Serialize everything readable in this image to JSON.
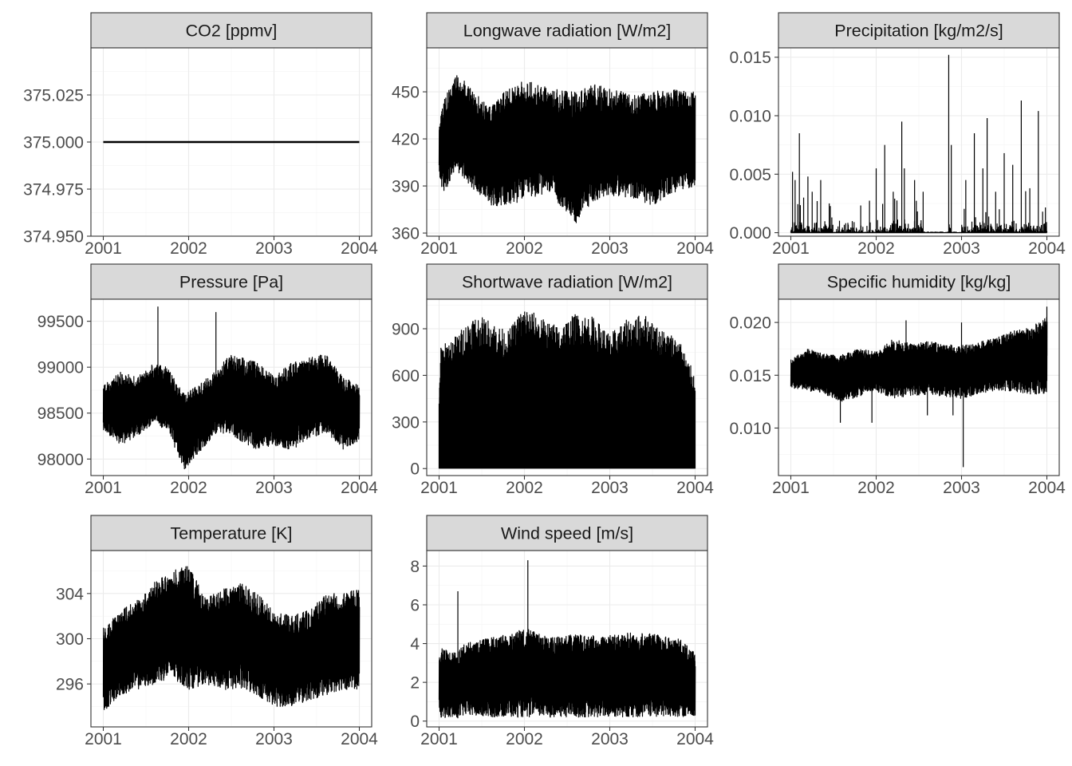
{
  "chart_data": [
    {
      "type": "line",
      "title": "CO2 [ppmv]",
      "x_ticks": [
        "2001",
        "2002",
        "2003",
        "2004"
      ],
      "x_range": [
        2001,
        2004
      ],
      "y_ticks": [
        "374.950",
        "374.975",
        "375.000",
        "375.025"
      ],
      "y_tick_values": [
        374.95,
        374.975,
        375.0,
        375.025
      ],
      "ylim": [
        374.95,
        375.05
      ],
      "pattern": "constant",
      "values": [
        375.0,
        375.0
      ],
      "x": [
        2001,
        2004
      ]
    },
    {
      "type": "line",
      "title": "Longwave radiation [W/m2]",
      "x_ticks": [
        "2001",
        "2002",
        "2003",
        "2004"
      ],
      "x_range": [
        2001,
        2004
      ],
      "y_ticks": [
        "360",
        "390",
        "420",
        "450"
      ],
      "y_tick_values": [
        360,
        390,
        420,
        450
      ],
      "ylim": [
        358,
        478
      ],
      "pattern": "band",
      "envelope": {
        "x": [
          2001.0,
          2001.05,
          2001.2,
          2001.4,
          2001.6,
          2001.8,
          2002.0,
          2002.3,
          2002.6,
          2002.8,
          2003.0,
          2003.3,
          2003.5,
          2003.7,
          2004.0
        ],
        "min": [
          395,
          385,
          400,
          388,
          378,
          376,
          382,
          385,
          366,
          380,
          384,
          382,
          377,
          385,
          390
        ],
        "max": [
          430,
          445,
          463,
          450,
          440,
          452,
          458,
          452,
          450,
          455,
          452,
          448,
          450,
          452,
          450
        ]
      }
    },
    {
      "type": "line",
      "title": "Precipitation [kg/m2/s]",
      "x_ticks": [
        "2001",
        "2002",
        "2003",
        "2004"
      ],
      "x_range": [
        2001,
        2004
      ],
      "y_ticks": [
        "0.000",
        "0.005",
        "0.010",
        "0.015"
      ],
      "y_tick_values": [
        0.0,
        0.005,
        0.01,
        0.015
      ],
      "ylim": [
        -0.0003,
        0.0158
      ],
      "pattern": "spikes",
      "spikes": {
        "x": [
          2001.02,
          2001.05,
          2001.1,
          2001.15,
          2001.2,
          2001.25,
          2001.35,
          2001.45,
          2002.0,
          2002.1,
          2002.2,
          2002.3,
          2002.33,
          2002.45,
          2002.55,
          2002.85,
          2002.88,
          2003.05,
          2003.15,
          2003.25,
          2003.3,
          2003.4,
          2003.5,
          2003.6,
          2003.7,
          2003.8,
          2003.9,
          2003.95
        ],
        "values": [
          0.0052,
          0.0045,
          0.0085,
          0.003,
          0.0048,
          0.0035,
          0.0045,
          0.0025,
          0.0055,
          0.0075,
          0.0035,
          0.0095,
          0.0055,
          0.0045,
          0.0035,
          0.0152,
          0.0075,
          0.0045,
          0.0085,
          0.0055,
          0.0098,
          0.0035,
          0.0068,
          0.0058,
          0.0113,
          0.0038,
          0.0104,
          0.0018
        ]
      }
    },
    {
      "type": "line",
      "title": "Pressure [Pa]",
      "x_ticks": [
        "2001",
        "2002",
        "2003",
        "2004"
      ],
      "x_range": [
        2001,
        2004
      ],
      "y_ticks": [
        "98000",
        "98500",
        "99000",
        "99500"
      ],
      "y_tick_values": [
        98000,
        98500,
        99000,
        99500
      ],
      "ylim": [
        97820,
        99740
      ],
      "pattern": "band",
      "envelope": {
        "x": [
          2001.0,
          2001.2,
          2001.4,
          2001.6,
          2001.75,
          2001.95,
          2002.1,
          2002.35,
          2002.5,
          2002.8,
          2003.0,
          2003.2,
          2003.4,
          2003.6,
          2003.8,
          2004.0
        ],
        "min": [
          98300,
          98150,
          98250,
          98400,
          98300,
          97880,
          98050,
          98300,
          98250,
          98100,
          98150,
          98100,
          98200,
          98300,
          98100,
          98200
        ],
        "max": [
          98800,
          98950,
          98900,
          99050,
          99000,
          98700,
          98800,
          99000,
          99150,
          99050,
          98900,
          99050,
          99100,
          99150,
          98900,
          98800
        ]
      },
      "spikes": {
        "x": [
          2001.64,
          2002.32
        ],
        "values": [
          99660,
          99600
        ]
      }
    },
    {
      "type": "line",
      "title": "Shortwave radiation [W/m2]",
      "x_ticks": [
        "2001",
        "2002",
        "2003",
        "2004"
      ],
      "x_range": [
        2001,
        2004
      ],
      "y_ticks": [
        "0",
        "300",
        "600",
        "900"
      ],
      "y_tick_values": [
        0,
        300,
        600,
        900
      ],
      "ylim": [
        -45,
        1090
      ],
      "pattern": "filled",
      "envelope": {
        "x": [
          2001.0,
          2001.02,
          2001.2,
          2001.4,
          2001.6,
          2001.8,
          2002.0,
          2002.2,
          2002.4,
          2002.6,
          2002.8,
          2003.0,
          2003.2,
          2003.4,
          2003.6,
          2003.8,
          2004.0
        ],
        "min": [
          0,
          0,
          0,
          0,
          0,
          0,
          0,
          0,
          0,
          0,
          0,
          0,
          0,
          0,
          0,
          0,
          0
        ],
        "max": [
          500,
          790,
          860,
          990,
          960,
          880,
          1050,
          970,
          920,
          1000,
          980,
          870,
          960,
          1000,
          900,
          850,
          600
        ]
      }
    },
    {
      "type": "line",
      "title": "Specific humidity [kg/kg]",
      "x_ticks": [
        "2001",
        "2002",
        "2003",
        "2004"
      ],
      "x_range": [
        2001,
        2004
      ],
      "y_ticks": [
        "0.010",
        "0.015",
        "0.020"
      ],
      "y_tick_values": [
        0.01,
        0.015,
        0.02
      ],
      "ylim": [
        0.0055,
        0.0222
      ],
      "pattern": "band",
      "envelope": {
        "x": [
          2001.0,
          2001.2,
          2001.4,
          2001.6,
          2001.8,
          2002.0,
          2002.2,
          2002.4,
          2002.6,
          2002.8,
          2003.0,
          2003.2,
          2003.4,
          2003.6,
          2003.8,
          2004.0
        ],
        "min": [
          0.0138,
          0.0135,
          0.0132,
          0.0125,
          0.013,
          0.0135,
          0.0128,
          0.013,
          0.0132,
          0.013,
          0.0128,
          0.0132,
          0.0135,
          0.0135,
          0.0132,
          0.0132
        ],
        "max": [
          0.0165,
          0.0175,
          0.017,
          0.017,
          0.0175,
          0.0172,
          0.0185,
          0.018,
          0.0182,
          0.018,
          0.0178,
          0.0182,
          0.0185,
          0.0192,
          0.0195,
          0.0205
        ]
      },
      "spikes_down": {
        "x": [
          2001.58,
          2001.95,
          2002.6,
          2002.9,
          2003.02
        ],
        "values": [
          0.0105,
          0.0105,
          0.0112,
          0.0112,
          0.0063
        ]
      },
      "spikes": {
        "x": [
          2002.35,
          2003.0,
          2004.0
        ],
        "values": [
          0.0202,
          0.02,
          0.0215
        ]
      }
    },
    {
      "type": "line",
      "title": "Temperature [K]",
      "x_ticks": [
        "2001",
        "2002",
        "2003",
        "2004"
      ],
      "x_range": [
        2001,
        2004
      ],
      "y_ticks": [
        "296",
        "300",
        "304"
      ],
      "y_tick_values": [
        296,
        300,
        304
      ],
      "ylim": [
        292.2,
        307.8
      ],
      "pattern": "band",
      "envelope": {
        "x": [
          2001.0,
          2001.2,
          2001.4,
          2001.6,
          2001.8,
          2002.0,
          2002.2,
          2002.4,
          2002.6,
          2002.8,
          2003.0,
          2003.2,
          2003.4,
          2003.6,
          2003.8,
          2004.0
        ],
        "min": [
          293.5,
          295.0,
          295.5,
          296.0,
          296.5,
          295.5,
          296.0,
          295.5,
          295.5,
          295.0,
          294.0,
          294.0,
          294.5,
          295.0,
          295.5,
          295.5
        ],
        "max": [
          301.0,
          302.5,
          303.5,
          305.0,
          306.0,
          306.5,
          303.5,
          304.5,
          305.0,
          304.0,
          302.5,
          302.0,
          302.5,
          304.0,
          304.0,
          304.5
        ]
      }
    },
    {
      "type": "line",
      "title": "Wind speed [m/s]",
      "x_ticks": [
        "2001",
        "2002",
        "2003",
        "2004"
      ],
      "x_range": [
        2001,
        2004
      ],
      "y_ticks": [
        "0",
        "2",
        "4",
        "6",
        "8"
      ],
      "y_tick_values": [
        0,
        2,
        4,
        6,
        8
      ],
      "ylim": [
        -0.3,
        8.8
      ],
      "pattern": "band",
      "envelope": {
        "x": [
          2001.0,
          2001.2,
          2001.3,
          2001.5,
          2001.8,
          2002.0,
          2002.3,
          2002.6,
          2002.9,
          2003.2,
          2003.5,
          2003.8,
          2004.0
        ],
        "min": [
          0.2,
          0.1,
          0.3,
          0.2,
          0.2,
          0.2,
          0.2,
          0.2,
          0.2,
          0.2,
          0.2,
          0.2,
          0.3
        ],
        "max": [
          3.8,
          3.5,
          4.0,
          4.2,
          4.5,
          4.8,
          4.3,
          4.5,
          4.4,
          4.6,
          4.5,
          4.3,
          3.5
        ]
      },
      "spikes": {
        "x": [
          2001.22,
          2002.04
        ],
        "values": [
          6.7,
          8.3
        ]
      }
    }
  ]
}
